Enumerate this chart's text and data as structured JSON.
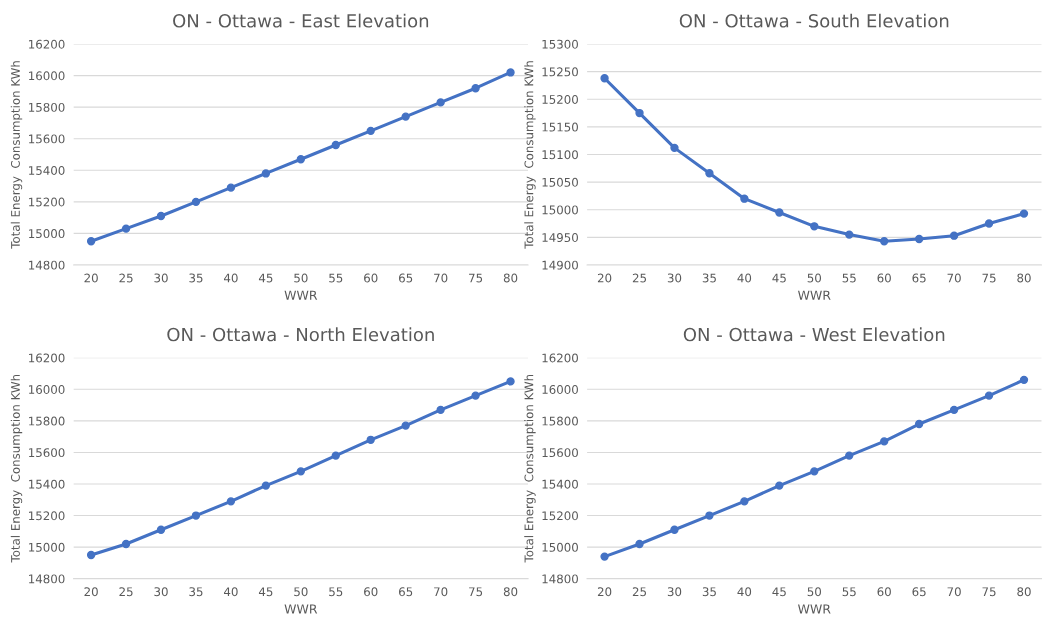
{
  "chart_data": [
    {
      "type": "line",
      "title": "ON - Ottawa - East Elevation",
      "xlabel": "WWR",
      "ylabel": "Total Energy  Consumption KWh",
      "categories": [
        "20",
        "25",
        "30",
        "35",
        "40",
        "45",
        "50",
        "55",
        "60",
        "65",
        "70",
        "75",
        "80"
      ],
      "series": [
        {
          "color": "#4472c4",
          "values": [
            14950,
            15030,
            15110,
            15200,
            15290,
            15380,
            15470,
            15560,
            15650,
            15740,
            15830,
            15920,
            16020
          ]
        }
      ],
      "ylim": [
        14800,
        16200
      ],
      "yticks": [
        14800,
        15000,
        15200,
        15400,
        15600,
        15800,
        16000,
        16200
      ],
      "grid": "y",
      "marker": "circle",
      "line_style": "solid"
    },
    {
      "type": "line",
      "title": "ON - Ottawa - South Elevation",
      "xlabel": "WWR",
      "ylabel": "Total Energy  Consumption KWh",
      "categories": [
        "20",
        "25",
        "30",
        "35",
        "40",
        "45",
        "50",
        "55",
        "60",
        "65",
        "70",
        "75",
        "80"
      ],
      "series": [
        {
          "color": "#4472c4",
          "values": [
            15238,
            15175,
            15112,
            15066,
            15020,
            14995,
            14970,
            14955,
            14943,
            14947,
            14953,
            14975,
            14993
          ]
        }
      ],
      "ylim": [
        14900,
        15300
      ],
      "yticks": [
        14900,
        14950,
        15000,
        15050,
        15100,
        15150,
        15200,
        15250,
        15300
      ],
      "grid": "y",
      "marker": "circle",
      "line_style": "solid"
    },
    {
      "type": "line",
      "title": "ON - Ottawa - North Elevation",
      "xlabel": "WWR",
      "ylabel": "Total Energy  Consumption KWh",
      "categories": [
        "20",
        "25",
        "30",
        "35",
        "40",
        "45",
        "50",
        "55",
        "60",
        "65",
        "70",
        "75",
        "80"
      ],
      "series": [
        {
          "color": "#4472c4",
          "values": [
            14950,
            15020,
            15110,
            15200,
            15290,
            15390,
            15480,
            15580,
            15680,
            15770,
            15870,
            15960,
            16050
          ]
        }
      ],
      "ylim": [
        14800,
        16200
      ],
      "yticks": [
        14800,
        15000,
        15200,
        15400,
        15600,
        15800,
        16000,
        16200
      ],
      "grid": "y",
      "marker": "circle",
      "line_style": "solid"
    },
    {
      "type": "line",
      "title": "ON - Ottawa - West Elevation",
      "xlabel": "WWR",
      "ylabel": "Total Energy  Consumption KWh",
      "categories": [
        "20",
        "25",
        "30",
        "35",
        "40",
        "45",
        "50",
        "55",
        "60",
        "65",
        "70",
        "75",
        "80"
      ],
      "series": [
        {
          "color": "#4472c4",
          "values": [
            14940,
            15020,
            15110,
            15200,
            15290,
            15390,
            15480,
            15580,
            15670,
            15780,
            15870,
            15960,
            16060
          ]
        }
      ],
      "ylim": [
        14800,
        16200
      ],
      "yticks": [
        14800,
        15000,
        15200,
        15400,
        15600,
        15800,
        16000,
        16200
      ],
      "grid": "y",
      "marker": "circle",
      "line_style": "solid"
    }
  ]
}
